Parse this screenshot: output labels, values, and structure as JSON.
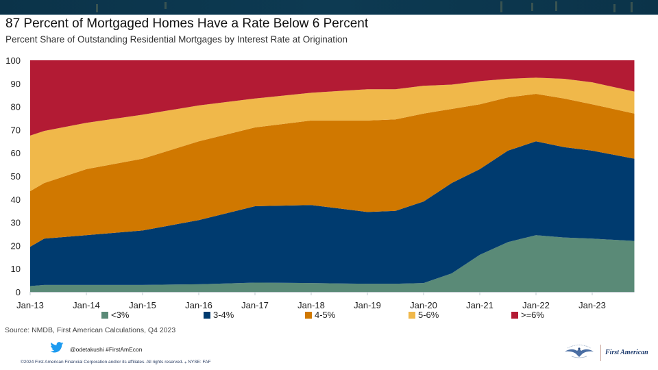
{
  "header": {
    "title": "87 Percent of Mortgaged Homes Have a Rate Below 6 Percent",
    "subtitle": "Percent Share of Outstanding Residential Mortgages by Interest Rate at Origination"
  },
  "chart_data": {
    "type": "area",
    "stacked": true,
    "title": "87 Percent of Mortgaged Homes Have a Rate Below 6 Percent",
    "subtitle": "Percent Share of Outstanding Residential Mortgages by Interest Rate at Origination",
    "xlabel": "",
    "ylabel": "",
    "ylim": [
      0,
      100
    ],
    "yticks": [
      "0",
      "10",
      "20",
      "30",
      "40",
      "50",
      "60",
      "70",
      "80",
      "90",
      "100"
    ],
    "xticks": [
      "Jan-13",
      "Jan-14",
      "Jan-15",
      "Jan-16",
      "Jan-17",
      "Jan-18",
      "Jan-19",
      "Jan-20",
      "Jan-21",
      "Jan-22",
      "Jan-23"
    ],
    "x_quarters_from_jan13": [
      0,
      1,
      4,
      8,
      12,
      16,
      20,
      24,
      26,
      28,
      30,
      32,
      34,
      36,
      38,
      40,
      43
    ],
    "grid": false,
    "legend_position": "bottom",
    "series": [
      {
        "name": "<3%",
        "color": "#5a8a77",
        "values": [
          2.5,
          3.0,
          3.0,
          3.0,
          3.3,
          4.0,
          3.8,
          3.5,
          3.5,
          3.8,
          8.0,
          16.0,
          21.5,
          24.5,
          23.5,
          23.0,
          22.0
        ]
      },
      {
        "name": "3-4%",
        "color": "#003b6f",
        "values": [
          17.0,
          20.0,
          21.5,
          23.5,
          27.7,
          33.0,
          33.7,
          31.0,
          31.5,
          35.2,
          39.0,
          37.0,
          39.5,
          40.5,
          39.0,
          38.0,
          35.5
        ]
      },
      {
        "name": "4-5%",
        "color": "#d07800",
        "values": [
          24.0,
          24.0,
          28.5,
          31.0,
          34.0,
          34.0,
          36.5,
          39.5,
          39.5,
          38.0,
          32.0,
          28.0,
          23.0,
          20.5,
          21.0,
          20.0,
          19.5
        ]
      },
      {
        "name": "5-6%",
        "color": "#f0b84a",
        "values": [
          24.0,
          22.5,
          20.0,
          19.0,
          15.5,
          12.5,
          12.0,
          13.5,
          13.0,
          12.0,
          10.5,
          10.0,
          8.0,
          7.0,
          8.5,
          9.5,
          9.5
        ]
      },
      {
        "name": ">=6%",
        "color": "#b31b34",
        "values": [
          32.5,
          30.5,
          27.0,
          23.5,
          19.5,
          16.5,
          14.0,
          12.5,
          12.5,
          11.0,
          10.5,
          9.0,
          8.0,
          7.5,
          8.0,
          9.5,
          13.5
        ]
      }
    ]
  },
  "legend": [
    {
      "label": "<3%",
      "color": "#5a8a77"
    },
    {
      "label": "3-4%",
      "color": "#003b6f"
    },
    {
      "label": "4-5%",
      "color": "#d07800"
    },
    {
      "label": "5-6%",
      "color": "#f0b84a"
    },
    {
      "label": ">=6%",
      "color": "#b31b34"
    }
  ],
  "footer": {
    "source": "Source: NMDB, First American Calculations, Q4 2023",
    "twitter_handle": "@odetakushi #FirstAmEcon",
    "copyright": "©2024 First American Financial Corporation and/or its affiliates. All rights reserved. ⁎ NYSE: FAF",
    "logo_text": "First American",
    "seal_text": "FIRST AMERICAN"
  },
  "icons": {
    "twitter": "twitter-bird-icon",
    "logo": "eagle-seal-icon"
  },
  "colors": {
    "banner": "#0b3349",
    "axis": "#bfc9cf"
  }
}
